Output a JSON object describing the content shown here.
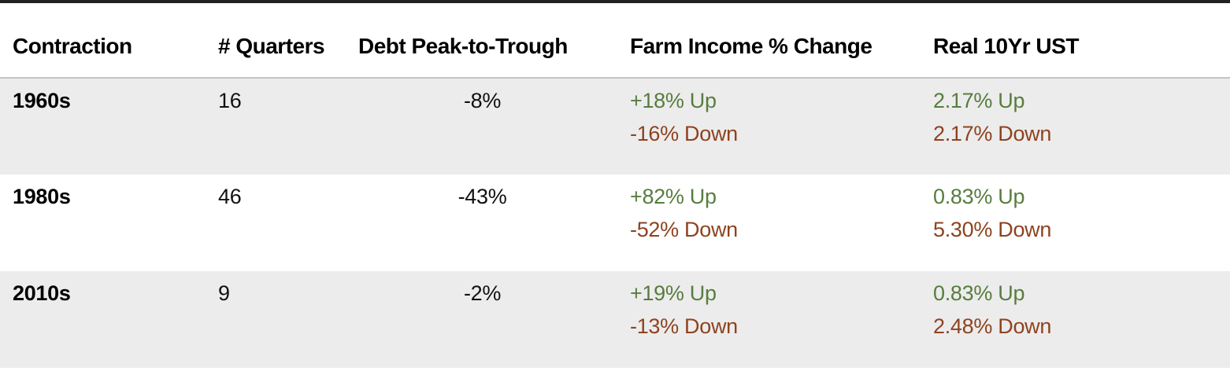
{
  "colors": {
    "up_text": "#587c3e",
    "down_text": "#8e431f",
    "stripe_row_bg": "#ececec",
    "header_rule": "#c3c3c3",
    "top_rule": "#212121"
  },
  "chart_data": {
    "type": "table",
    "title": "",
    "legend": {
      "up_color_meaning": "Up scenario",
      "down_color_meaning": "Down scenario"
    },
    "columns": [
      "Contraction",
      "# Quarters",
      "Debt Peak-to-Trough",
      "Farm Income % Change",
      "Real 10Yr UST"
    ],
    "rows": [
      {
        "contraction": "1960s",
        "quarters": "16",
        "debt_peak_to_trough": "-8%",
        "farm_income": {
          "up": "+18% Up",
          "down": "-16% Down"
        },
        "real_10yr_ust": {
          "up": "2.17% Up",
          "down": "2.17% Down"
        }
      },
      {
        "contraction": "1980s",
        "quarters": "46",
        "debt_peak_to_trough": "-43%",
        "farm_income": {
          "up": "+82% Up",
          "down": "-52% Down"
        },
        "real_10yr_ust": {
          "up": "0.83% Up",
          "down": "5.30% Down"
        }
      },
      {
        "contraction": "2010s",
        "quarters": "9",
        "debt_peak_to_trough": "-2%",
        "farm_income": {
          "up": "+19% Up",
          "down": "-13% Down"
        },
        "real_10yr_ust": {
          "up": "0.83% Up",
          "down": "2.48% Down"
        }
      }
    ]
  }
}
